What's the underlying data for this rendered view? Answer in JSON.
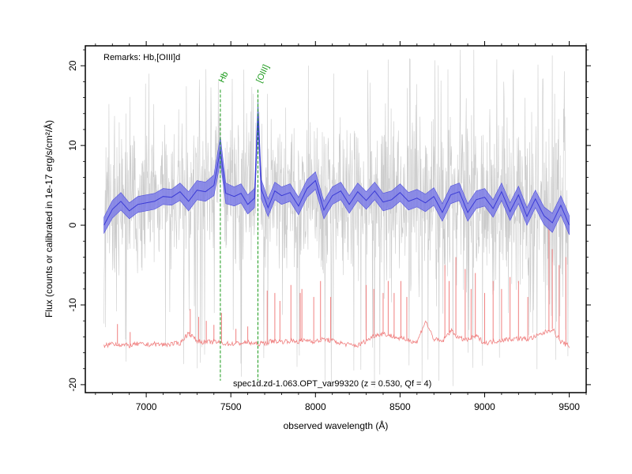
{
  "chart_data": {
    "type": "line",
    "xlabel": "observed wavelength (Å)",
    "ylabel": "Flux (counts or calibrated in 1e-17 erg/s/cm²/Å)",
    "xlim": [
      6640,
      9600
    ],
    "ylim": [
      -21,
      22.5
    ],
    "x_ticks": [
      7000,
      7500,
      8000,
      8500,
      9000,
      9500
    ],
    "y_ticks": [
      -20,
      -10,
      0,
      10,
      20
    ],
    "x_range": [
      6750,
      9500
    ],
    "remarks": "Remarks: Hb,[OIII]d",
    "caption": "spec1d.zd-1.063.OPT_var99320 (z = 0.530, Qf = 4)",
    "grid": false,
    "emission_lines": [
      {
        "label": "Hb",
        "wavelength": 7438,
        "color": "#1a9a1a"
      },
      {
        "label": "[OIII]",
        "wavelength": 7660,
        "color": "#1a9a1a"
      }
    ],
    "series": [
      {
        "role": "smoothed spectrum (band)",
        "color": "#3a3ad6",
        "band_color": "#7b7be6",
        "x": [
          6750,
          6800,
          6850,
          6900,
          6950,
          7000,
          7050,
          7100,
          7150,
          7200,
          7250,
          7300,
          7350,
          7400,
          7438,
          7470,
          7520,
          7560,
          7600,
          7640,
          7660,
          7680,
          7720,
          7760,
          7800,
          7850,
          7900,
          7950,
          8000,
          8050,
          8100,
          8150,
          8200,
          8250,
          8300,
          8350,
          8400,
          8450,
          8500,
          8550,
          8600,
          8650,
          8700,
          8750,
          8800,
          8850,
          8900,
          8950,
          9000,
          9050,
          9100,
          9150,
          9200,
          9250,
          9300,
          9350,
          9400,
          9450,
          9500
        ],
        "y": [
          0.0,
          2.0,
          3.0,
          1.8,
          2.6,
          2.8,
          3.0,
          3.6,
          3.5,
          4.2,
          3.0,
          4.4,
          4.2,
          5.0,
          9.5,
          4.0,
          3.6,
          4.0,
          2.6,
          3.4,
          14.0,
          4.5,
          2.2,
          4.3,
          3.7,
          4.1,
          2.4,
          4.6,
          5.6,
          1.9,
          3.7,
          4.3,
          2.6,
          4.2,
          3.1,
          4.3,
          2.9,
          3.2,
          4.1,
          3.0,
          3.4,
          2.8,
          3.6,
          1.6,
          3.8,
          4.2,
          1.6,
          3.2,
          3.5,
          2.1,
          4.2,
          1.7,
          3.8,
          1.1,
          3.3,
          1.2,
          0.3,
          2.5,
          0.0
        ],
        "err": [
          1.0,
          1.1,
          1.1,
          1.0,
          1.0,
          1.0,
          1.0,
          1.0,
          1.0,
          1.1,
          1.2,
          1.2,
          1.2,
          1.3,
          1.6,
          1.3,
          1.2,
          1.2,
          1.2,
          1.2,
          1.4,
          1.2,
          1.1,
          1.1,
          1.1,
          1.1,
          1.1,
          1.1,
          1.1,
          1.1,
          1.1,
          1.1,
          1.1,
          1.1,
          1.1,
          1.1,
          1.1,
          1.1,
          1.1,
          1.1,
          1.1,
          1.1,
          1.1,
          1.1,
          1.1,
          1.1,
          1.1,
          1.1,
          1.1,
          1.1,
          1.1,
          1.1,
          1.1,
          1.1,
          1.1,
          1.1,
          1.2,
          1.2,
          1.2
        ]
      },
      {
        "role": "raw spectrum (noise envelope)",
        "color": "#b9b9b9",
        "x": [
          6750,
          7000,
          7250,
          7500,
          7750,
          8000,
          8250,
          8500,
          8750,
          9000,
          9250,
          9500
        ],
        "y_high": [
          13,
          14,
          14,
          15,
          15,
          16,
          16,
          17,
          17,
          17,
          17,
          18
        ],
        "y_low": [
          -9,
          -10,
          -10,
          -11,
          -11,
          -12,
          -12,
          -13,
          -13,
          -13,
          -13,
          -14
        ]
      },
      {
        "role": "sky / error spectrum",
        "color": "#f08080",
        "baseline": -15.0,
        "x": [
          6750,
          6800,
          6850,
          6900,
          6950,
          7000,
          7050,
          7100,
          7150,
          7200,
          7250,
          7300,
          7350,
          7400,
          7450,
          7500,
          7550,
          7600,
          7650,
          7700,
          7750,
          7800,
          7850,
          7900,
          7950,
          8000,
          8050,
          8100,
          8150,
          8200,
          8250,
          8300,
          8350,
          8400,
          8450,
          8500,
          8550,
          8600,
          8650,
          8700,
          8750,
          8800,
          8850,
          8900,
          8950,
          9000,
          9050,
          9100,
          9150,
          9200,
          9250,
          9300,
          9350,
          9400,
          9450,
          9500
        ],
        "y": [
          -15.2,
          -14.8,
          -15.0,
          -15.1,
          -14.9,
          -15.0,
          -14.9,
          -15.0,
          -14.9,
          -14.8,
          -13.5,
          -14.5,
          -14.7,
          -14.6,
          -14.8,
          -14.9,
          -14.8,
          -14.7,
          -14.9,
          -14.8,
          -14.5,
          -14.6,
          -14.5,
          -14.6,
          -14.4,
          -14.6,
          -14.3,
          -14.5,
          -14.8,
          -15.0,
          -15.1,
          -14.5,
          -13.8,
          -13.6,
          -13.9,
          -14.2,
          -14.4,
          -14.7,
          -12.0,
          -14.3,
          -14.6,
          -13.2,
          -14.2,
          -14.4,
          -13.9,
          -14.8,
          -14.6,
          -14.4,
          -14.3,
          -14.2,
          -14.3,
          -14.0,
          -13.5,
          -13.0,
          -14.6,
          -15.2
        ],
        "spikes": [
          {
            "x": 6830,
            "y": -12.4
          },
          {
            "x": 6905,
            "y": -13.4
          },
          {
            "x": 7260,
            "y": -10.5
          },
          {
            "x": 7310,
            "y": -11.5
          },
          {
            "x": 7355,
            "y": -12.0
          },
          {
            "x": 7400,
            "y": -12.5
          },
          {
            "x": 7445,
            "y": -11.0
          },
          {
            "x": 7530,
            "y": -13.0
          },
          {
            "x": 7600,
            "y": -12.7
          },
          {
            "x": 7715,
            "y": -8.2
          },
          {
            "x": 7760,
            "y": -8.5
          },
          {
            "x": 7790,
            "y": -9.5
          },
          {
            "x": 7855,
            "y": -7.5
          },
          {
            "x": 7910,
            "y": -8.5
          },
          {
            "x": 7920,
            "y": -8.0
          },
          {
            "x": 7990,
            "y": -9.0
          },
          {
            "x": 8030,
            "y": -7.0
          },
          {
            "x": 8090,
            "y": -9.0
          },
          {
            "x": 8300,
            "y": -7.5
          },
          {
            "x": 8345,
            "y": -8.0
          },
          {
            "x": 8400,
            "y": -8.5
          },
          {
            "x": 8430,
            "y": -7.0
          },
          {
            "x": 8465,
            "y": -8.5
          },
          {
            "x": 8505,
            "y": -7.0
          },
          {
            "x": 8540,
            "y": -9.0
          },
          {
            "x": 8765,
            "y": -5.0
          },
          {
            "x": 8790,
            "y": -7.0
          },
          {
            "x": 8830,
            "y": -4.0
          },
          {
            "x": 8885,
            "y": -5.5
          },
          {
            "x": 8920,
            "y": -8.0
          },
          {
            "x": 8945,
            "y": -6.0
          },
          {
            "x": 9000,
            "y": -8.5
          },
          {
            "x": 9050,
            "y": -7.0
          },
          {
            "x": 9100,
            "y": -8.0
          },
          {
            "x": 9150,
            "y": -6.5
          },
          {
            "x": 9200,
            "y": -7.0
          },
          {
            "x": 9255,
            "y": -9.0
          },
          {
            "x": 9380,
            "y": 1.0
          },
          {
            "x": 9400,
            "y": -3.0
          },
          {
            "x": 9440,
            "y": -5.0
          },
          {
            "x": 9480,
            "y": -4.0
          }
        ]
      }
    ]
  }
}
